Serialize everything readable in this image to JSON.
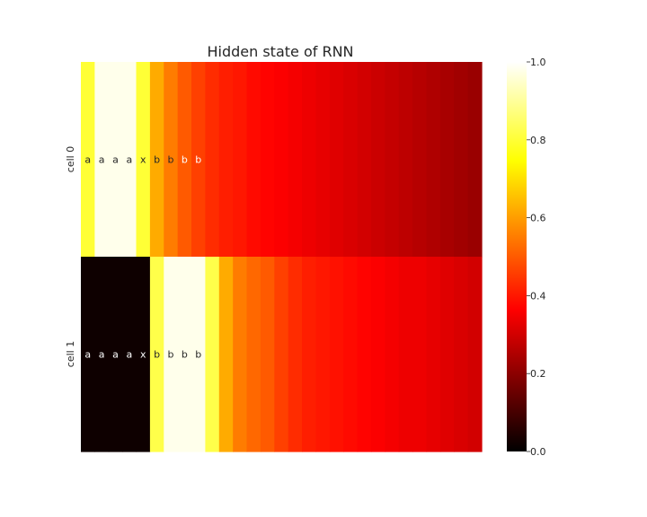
{
  "chart_data": {
    "type": "heatmap",
    "title": "Hidden state of RNN",
    "xlabel": "",
    "ylabel": "",
    "rows": [
      "cell 0",
      "cell 1"
    ],
    "columns_count": 29,
    "values": [
      [
        0.8,
        0.98,
        0.98,
        0.98,
        0.8,
        0.62,
        0.55,
        0.5,
        0.46,
        0.43,
        0.41,
        0.4,
        0.38,
        0.37,
        0.36,
        0.35,
        0.34,
        0.33,
        0.32,
        0.31,
        0.3,
        0.29,
        0.28,
        0.27,
        0.26,
        0.25,
        0.24,
        0.23,
        0.22
      ],
      [
        0.02,
        0.02,
        0.02,
        0.02,
        0.02,
        0.82,
        0.98,
        0.98,
        0.98,
        0.82,
        0.62,
        0.55,
        0.52,
        0.5,
        0.46,
        0.43,
        0.41,
        0.4,
        0.39,
        0.38,
        0.37,
        0.36,
        0.35,
        0.34,
        0.34,
        0.33,
        0.32,
        0.31,
        0.3
      ]
    ],
    "annotations": [
      [
        "a",
        "a",
        "a",
        "a",
        "x",
        "b",
        "b",
        "b",
        "b"
      ],
      [
        "a",
        "a",
        "a",
        "a",
        "x",
        "b",
        "b",
        "b",
        "b"
      ]
    ],
    "colormap": "hot",
    "colorbar": {
      "range": [
        0.0,
        1.0
      ],
      "ticks": [
        "0.0",
        "0.2",
        "0.4",
        "0.6",
        "0.8",
        "1.0"
      ]
    },
    "grid": false
  }
}
